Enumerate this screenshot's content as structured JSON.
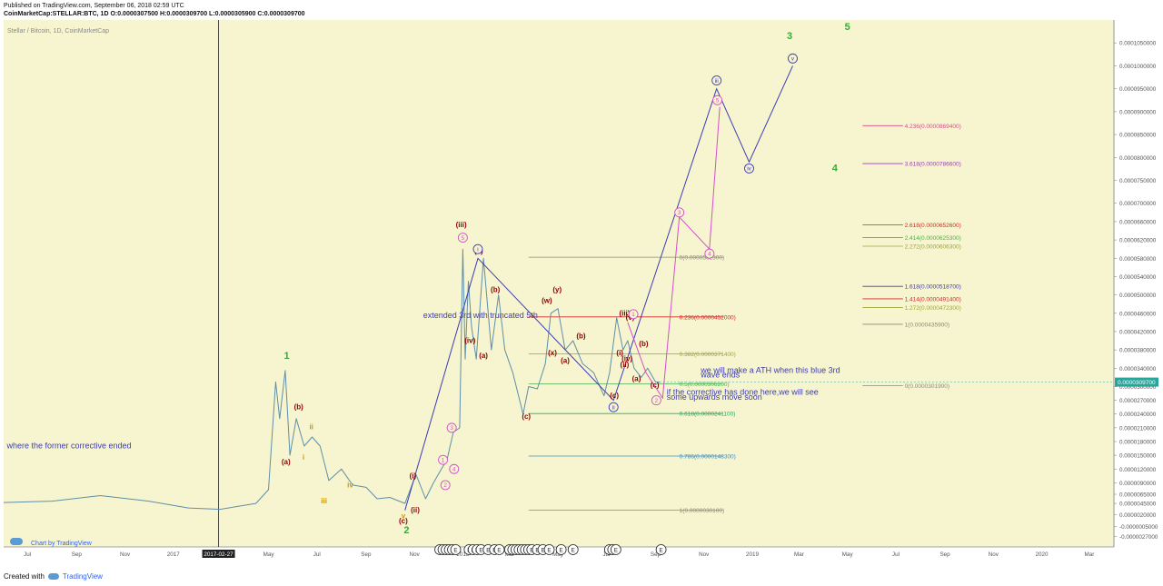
{
  "header": {
    "published": "Published on TradingView.com, September 06, 2018 02:59 UTC",
    "symbol_line": "CoinMarketCap:STELLAR:BTC, 1D  O:0.0000307500  H:0.0000309700  L:0.0000305900  C:0.0000309700"
  },
  "footer": {
    "created_with": "Created with",
    "brand": "TradingView"
  },
  "chart_data": {
    "type": "line",
    "title": "Stellar / Bitcoin, 1D, CoinMarketCap",
    "watermark": "Chart by TradingView",
    "ylim": [
      -5e-06,
      0.00011
    ],
    "y_ticks": [
      "0.0001100000",
      "0.0001050000",
      "0.0001000000",
      "0.0000950000",
      "0.0000900000",
      "0.0000850000",
      "0.0000800000",
      "0.0000750000",
      "0.0000700000",
      "0.0000660000",
      "0.0000620000",
      "0.0000580000",
      "0.0000540000",
      "0.0000500000",
      "0.0000460000",
      "0.0000420000",
      "0.0000380000",
      "0.0000340000",
      "0.0000300000",
      "0.0000270000",
      "0.0000240000",
      "0.0000210000",
      "0.0000180000",
      "0.0000150000",
      "0.0000120000",
      "0.0000090000",
      "0.0000065000",
      "0.0000045000",
      "0.0000020000",
      "-0.0000005000",
      "-0.0000027000",
      "-0.0000049000"
    ],
    "x_ticks": [
      "Jul",
      "Sep",
      "Nov",
      "2017",
      "2017-02-27",
      "May",
      "Jul",
      "Sep",
      "Nov",
      "2018",
      "Mar",
      "May",
      "Jul",
      "Sep",
      "Nov",
      "2019",
      "Mar",
      "May",
      "Jul",
      "Sep",
      "Nov",
      "2020",
      "Mar"
    ],
    "last_price": "0.0000309700",
    "colors": {
      "background": "#f7f5cf",
      "price": "#5f8ea8",
      "wave": "#3c3cb5",
      "pink": "#d44fc8",
      "green": "#3aa83a",
      "dark_red": "#8b0000",
      "orange": "#c8960a",
      "accent": "#5b9bd5"
    },
    "price_series": [
      {
        "x": "2016-06-01",
        "y": 4.7e-06
      },
      {
        "x": "2016-08-01",
        "y": 5e-06
      },
      {
        "x": "2016-10-01",
        "y": 6.2e-06
      },
      {
        "x": "2016-12-01",
        "y": 5e-06
      },
      {
        "x": "2017-01-20",
        "y": 3.5e-06
      },
      {
        "x": "2017-03-01",
        "y": 3.2e-06
      },
      {
        "x": "2017-04-15",
        "y": 4.5e-06
      },
      {
        "x": "2017-05-01",
        "y": 7.5e-06
      },
      {
        "x": "2017-05-10",
        "y": 3.1e-05
      },
      {
        "x": "2017-05-15",
        "y": 2.3e-05
      },
      {
        "x": "2017-05-22",
        "y": 3.35e-05
      },
      {
        "x": "2017-05-28",
        "y": 1.5e-05
      },
      {
        "x": "2017-06-05",
        "y": 2.3e-05
      },
      {
        "x": "2017-06-15",
        "y": 1.7e-05
      },
      {
        "x": "2017-06-25",
        "y": 1.9e-05
      },
      {
        "x": "2017-07-05",
        "y": 1.7e-05
      },
      {
        "x": "2017-07-16",
        "y": 9.5e-06
      },
      {
        "x": "2017-08-01",
        "y": 1.2e-05
      },
      {
        "x": "2017-08-15",
        "y": 8.5e-06
      },
      {
        "x": "2017-09-01",
        "y": 8e-06
      },
      {
        "x": "2017-09-15",
        "y": 5.5e-06
      },
      {
        "x": "2017-10-01",
        "y": 5.8e-06
      },
      {
        "x": "2017-10-20",
        "y": 4.5e-06
      },
      {
        "x": "2017-11-03",
        "y": 1.08e-05
      },
      {
        "x": "2017-11-15",
        "y": 5.5e-06
      },
      {
        "x": "2017-11-25",
        "y": 9e-06
      },
      {
        "x": "2017-12-05",
        "y": 1.2e-05
      },
      {
        "x": "2017-12-12",
        "y": 1.4e-05
      },
      {
        "x": "2017-12-20",
        "y": 2e-05
      },
      {
        "x": "2017-12-28",
        "y": 2.1e-05
      },
      {
        "x": "2018-01-01",
        "y": 6e-05
      },
      {
        "x": "2018-01-04",
        "y": 3.6e-05
      },
      {
        "x": "2018-01-08",
        "y": 5.3e-05
      },
      {
        "x": "2018-01-12",
        "y": 4.3e-05
      },
      {
        "x": "2018-01-18",
        "y": 3.6e-05
      },
      {
        "x": "2018-01-27",
        "y": 5.8e-05
      },
      {
        "x": "2018-02-06",
        "y": 3.8e-05
      },
      {
        "x": "2018-02-15",
        "y": 5e-05
      },
      {
        "x": "2018-02-23",
        "y": 3.8e-05
      },
      {
        "x": "2018-03-05",
        "y": 3.3e-05
      },
      {
        "x": "2018-03-18",
        "y": 2.4e-05
      },
      {
        "x": "2018-03-25",
        "y": 3e-05
      },
      {
        "x": "2018-04-05",
        "y": 2.95e-05
      },
      {
        "x": "2018-04-15",
        "y": 3.5e-05
      },
      {
        "x": "2018-04-22",
        "y": 4.6e-05
      },
      {
        "x": "2018-05-01",
        "y": 4.7e-05
      },
      {
        "x": "2018-05-10",
        "y": 3.8e-05
      },
      {
        "x": "2018-05-20",
        "y": 4e-05
      },
      {
        "x": "2018-06-01",
        "y": 3.5e-05
      },
      {
        "x": "2018-06-15",
        "y": 3.3e-05
      },
      {
        "x": "2018-06-28",
        "y": 2.8e-05
      },
      {
        "x": "2018-07-05",
        "y": 3.3e-05
      },
      {
        "x": "2018-07-14",
        "y": 4.5e-05
      },
      {
        "x": "2018-07-22",
        "y": 3.8e-05
      },
      {
        "x": "2018-07-28",
        "y": 4e-05
      },
      {
        "x": "2018-08-05",
        "y": 3.4e-05
      },
      {
        "x": "2018-08-14",
        "y": 3.2e-05
      },
      {
        "x": "2018-08-22",
        "y": 3.4e-05
      },
      {
        "x": "2018-09-01",
        "y": 3.1e-05
      },
      {
        "x": "2018-09-06",
        "y": 3.097e-05
      }
    ],
    "wave_path": [
      {
        "x": "2017-10-20",
        "y": 3e-06
      },
      {
        "x": "2018-01-20",
        "y": 5.8e-05
      },
      {
        "x": "2018-07-10",
        "y": 2.7e-05
      },
      {
        "x": "2018-11-17",
        "y": 9.5e-05
      },
      {
        "x": "2018-12-28",
        "y": 7.9e-05
      },
      {
        "x": "2019-02-21",
        "y": 0.0001
      }
    ],
    "pink_path": [
      {
        "x": "2018-07-28",
        "y": 4.4e-05
      },
      {
        "x": "2018-08-20",
        "y": 3.3e-05
      },
      {
        "x": "2018-09-10",
        "y": 2.75e-05
      },
      {
        "x": "2018-10-01",
        "y": 6.7e-05
      },
      {
        "x": "2018-11-08",
        "y": 6e-05
      },
      {
        "x": "2018-11-21",
        "y": 9.1e-05
      }
    ],
    "fib_retracement": [
      {
        "label": "1(0.0000030100)",
        "y": 3.01e-06,
        "color": "#8a8a78"
      },
      {
        "label": "0.786(0.0000148300)",
        "y": 1.483e-05,
        "color": "#3d8fbf"
      },
      {
        "label": "0.618(0.0000241100)",
        "y": 2.411e-05,
        "color": "#2ca865"
      },
      {
        "label": "0.5(0.0000306200)",
        "y": 3.062e-05,
        "color": "#4caf50"
      },
      {
        "label": "0.382(0.0000371400)",
        "y": 3.714e-05,
        "color": "#9aa53a"
      },
      {
        "label": "0.236(0.0000452000)",
        "y": 4.52e-05,
        "color": "#d62828"
      },
      {
        "label": "0(0.0000582300)",
        "y": 5.823e-05,
        "color": "#8a8a78"
      }
    ],
    "fib_extension": [
      {
        "label": "4.236(0.0000869400)",
        "y": 8.694e-05,
        "color": "#d94a8c"
      },
      {
        "label": "3.618(0.0000786600)",
        "y": 7.866e-05,
        "color": "#9c3ab5"
      },
      {
        "label": "2.618(0.0000652600)",
        "y": 6.526e-05,
        "color": "#d62828"
      },
      {
        "label": "2.414(0.0000625300)",
        "y": 6.253e-05,
        "color": "#4caf50"
      },
      {
        "label": "2.272(0.0000606300)",
        "y": 6.063e-05,
        "color": "#9aa53a"
      },
      {
        "label": "1.618(0.0000518700)",
        "y": 5.187e-05,
        "color": "#3c3cb5"
      },
      {
        "label": "1.414(0.0000491400)",
        "y": 4.914e-05,
        "color": "#d62828"
      },
      {
        "label": "1.272(0.0000472300)",
        "y": 4.723e-05,
        "color": "#9aa53a"
      },
      {
        "label": "1(0.0000435900)",
        "y": 4.359e-05,
        "color": "#8a8a78"
      },
      {
        "label": "0(0.0000301900)",
        "y": 3.019e-05,
        "color": "#8a8a78"
      }
    ],
    "annotations": [
      {
        "text": "extended 3rd with truncated 5th",
        "x": "2017-11-12",
        "y": 4.5e-05,
        "color": "#3c3cb5",
        "size": 9
      },
      {
        "text": "where the former corrective ended",
        "x": "2016-06-05",
        "y": 1.65e-05,
        "color": "#3c3cb5",
        "size": 9
      },
      {
        "text": "we will make a ATH when this blue 3rd",
        "x": "2018-10-28",
        "y": 3.3e-05,
        "color": "#3c3cb5",
        "size": 9
      },
      {
        "text": "wave ends",
        "x": "2018-10-28",
        "y": 3.2e-05,
        "color": "#3c3cb5",
        "size": 9
      },
      {
        "text": "if the corrective has done here,we will see",
        "x": "2018-09-15",
        "y": 2.82e-05,
        "color": "#3c3cb5",
        "size": 9
      },
      {
        "text": "some upwards move soon",
        "x": "2018-09-15",
        "y": 2.71e-05,
        "color": "#3c3cb5",
        "size": 9
      }
    ],
    "wave_labels": [
      {
        "text": "1",
        "x": "2017-05-24",
        "y": 3.6e-05,
        "color": "#3aa83a",
        "size": 11
      },
      {
        "text": "2",
        "x": "2017-10-22",
        "y": -2e-06,
        "color": "#3aa83a",
        "size": 11
      },
      {
        "text": "3",
        "x": "2019-02-17",
        "y": 0.0001058,
        "color": "#3aa83a",
        "size": 11
      },
      {
        "text": "4",
        "x": "2019-04-15",
        "y": 7.7e-05,
        "color": "#3aa83a",
        "size": 11
      },
      {
        "text": "5",
        "x": "2019-05-01",
        "y": 0.0001078,
        "color": "#3aa83a",
        "size": 11
      },
      {
        "text": "(a)",
        "x": "2017-05-23",
        "y": 1.3e-05,
        "color": "#8b0000",
        "size": 8
      },
      {
        "text": "(b)",
        "x": "2017-06-08",
        "y": 2.5e-05,
        "color": "#8b0000",
        "size": 8
      },
      {
        "text": "i",
        "x": "2017-06-14",
        "y": 1.4e-05,
        "color": "#c8960a",
        "size": 8
      },
      {
        "text": "ii",
        "x": "2017-06-24",
        "y": 2.07e-05,
        "color": "#c8960a",
        "size": 8
      },
      {
        "text": "iii",
        "x": "2017-07-10",
        "y": 4.5e-06,
        "color": "#c8960a",
        "size": 8
      },
      {
        "text": "iv",
        "x": "2017-08-12",
        "y": 8e-06,
        "color": "#c8960a",
        "size": 8
      },
      {
        "text": "v",
        "x": "2017-10-18",
        "y": 1.2e-06,
        "color": "#c8960a",
        "size": 8
      },
      {
        "text": "(c)",
        "x": "2017-10-18",
        "y": 2e-07,
        "color": "#8b0000",
        "size": 8
      },
      {
        "text": "(i)",
        "x": "2017-10-30",
        "y": 1e-05,
        "color": "#8b0000",
        "size": 8
      },
      {
        "text": "(ii)",
        "x": "2017-11-02",
        "y": 2.5e-06,
        "color": "#8b0000",
        "size": 8
      },
      {
        "text": "(iii)",
        "x": "2017-12-30",
        "y": 6.48e-05,
        "color": "#8b0000",
        "size": 8
      },
      {
        "text": "(iv)",
        "x": "2018-01-10",
        "y": 3.95e-05,
        "color": "#8b0000",
        "size": 8
      },
      {
        "text": "(v)",
        "x": "2018-01-21",
        "y": 5.9e-05,
        "color": "#8b0000",
        "size": 8
      },
      {
        "text": "(a)",
        "x": "2018-01-27",
        "y": 3.62e-05,
        "color": "#8b0000",
        "size": 8
      },
      {
        "text": "(b)",
        "x": "2018-02-11",
        "y": 5.06e-05,
        "color": "#8b0000",
        "size": 8
      },
      {
        "text": "(c)",
        "x": "2018-03-22",
        "y": 2.3e-05,
        "color": "#8b0000",
        "size": 8
      },
      {
        "text": "(w)",
        "x": "2018-04-17",
        "y": 4.82e-05,
        "color": "#8b0000",
        "size": 8
      },
      {
        "text": "(x)",
        "x": "2018-04-24",
        "y": 3.68e-05,
        "color": "#8b0000",
        "size": 8
      },
      {
        "text": "(y)",
        "x": "2018-04-30",
        "y": 5.06e-05,
        "color": "#8b0000",
        "size": 8
      },
      {
        "text": "(a)",
        "x": "2018-05-10",
        "y": 3.52e-05,
        "color": "#8b0000",
        "size": 8
      },
      {
        "text": "(b)",
        "x": "2018-05-30",
        "y": 4.05e-05,
        "color": "#8b0000",
        "size": 8
      },
      {
        "text": "(c)",
        "x": "2018-07-11",
        "y": 2.75e-05,
        "color": "#8b0000",
        "size": 8
      },
      {
        "text": "(i)",
        "x": "2018-07-18",
        "y": 3.68e-05,
        "color": "#8b0000",
        "size": 8
      },
      {
        "text": "(ii)",
        "x": "2018-07-24",
        "y": 3.43e-05,
        "color": "#8b0000",
        "size": 8
      },
      {
        "text": "(iii)",
        "x": "2018-07-24",
        "y": 4.55e-05,
        "color": "#8b0000",
        "size": 8
      },
      {
        "text": "(iv)",
        "x": "2018-07-27",
        "y": 3.55e-05,
        "color": "#8b0000",
        "size": 8
      },
      {
        "text": "(v)",
        "x": "2018-07-31",
        "y": 4.46e-05,
        "color": "#8b0000",
        "size": 8
      },
      {
        "text": "(a)",
        "x": "2018-08-08",
        "y": 3.12e-05,
        "color": "#8b0000",
        "size": 8
      },
      {
        "text": "(b)",
        "x": "2018-08-17",
        "y": 3.88e-05,
        "color": "#8b0000",
        "size": 8
      },
      {
        "text": "(c)",
        "x": "2018-08-31",
        "y": 2.98e-05,
        "color": "#8b0000",
        "size": 8
      }
    ],
    "circle_labels": [
      {
        "text": "i",
        "x": "2018-01-20",
        "y": 6e-05,
        "color": "#3c3cb5"
      },
      {
        "text": "ii",
        "x": "2018-07-10",
        "y": 2.55e-05,
        "color": "#3c3cb5"
      },
      {
        "text": "iii",
        "x": "2018-11-17",
        "y": 9.68e-05,
        "color": "#3c3cb5"
      },
      {
        "text": "iv",
        "x": "2018-12-28",
        "y": 7.76e-05,
        "color": "#3c3cb5"
      },
      {
        "text": "v",
        "x": "2019-02-21",
        "y": 0.0001016,
        "color": "#3c3cb5"
      },
      {
        "text": "1",
        "x": "2017-12-07",
        "y": 1.4e-05,
        "color": "#d44fc8"
      },
      {
        "text": "2",
        "x": "2017-12-10",
        "y": 8.5e-06,
        "color": "#d44fc8"
      },
      {
        "text": "3",
        "x": "2017-12-18",
        "y": 2.1e-05,
        "color": "#d44fc8"
      },
      {
        "text": "4",
        "x": "2017-12-21",
        "y": 1.2e-05,
        "color": "#d44fc8"
      },
      {
        "text": "5",
        "x": "2018-01-01",
        "y": 6.25e-05,
        "color": "#d44fc8"
      },
      {
        "text": "1",
        "x": "2018-08-04",
        "y": 4.58e-05,
        "color": "#d44fc8"
      },
      {
        "text": "2",
        "x": "2018-09-02",
        "y": 2.7e-05,
        "color": "#d44fc8"
      },
      {
        "text": "3",
        "x": "2018-10-01",
        "y": 6.8e-05,
        "color": "#d44fc8"
      },
      {
        "text": "4",
        "x": "2018-11-08",
        "y": 5.9e-05,
        "color": "#d44fc8"
      },
      {
        "text": "5",
        "x": "2018-11-18",
        "y": 9.25e-05,
        "color": "#d44fc8"
      }
    ],
    "event_markers": [
      {
        "text": "E",
        "x": "2017-12-03"
      },
      {
        "text": "E",
        "x": "2017-12-07"
      },
      {
        "text": "E",
        "x": "2017-12-11"
      },
      {
        "text": "E",
        "x": "2017-12-15"
      },
      {
        "text": "E",
        "x": "2017-12-19"
      },
      {
        "text": "E",
        "x": "2017-12-23"
      },
      {
        "text": "E",
        "x": "2018-01-09"
      },
      {
        "text": "E",
        "x": "2018-01-14"
      },
      {
        "text": "E",
        "x": "2018-01-19"
      },
      {
        "text": "E",
        "x": "2018-01-24"
      },
      {
        "text": "E",
        "x": "2018-02-02"
      },
      {
        "text": "E",
        "x": "2018-02-10"
      },
      {
        "text": "E",
        "x": "2018-02-16"
      },
      {
        "text": "E",
        "x": "2018-03-01"
      },
      {
        "text": "E",
        "x": "2018-03-05"
      },
      {
        "text": "E",
        "x": "2018-03-09"
      },
      {
        "text": "E",
        "x": "2018-03-13"
      },
      {
        "text": "E",
        "x": "2018-03-17"
      },
      {
        "text": "E",
        "x": "2018-03-21"
      },
      {
        "text": "E",
        "x": "2018-03-25"
      },
      {
        "text": "E",
        "x": "2018-03-29"
      },
      {
        "text": "E",
        "x": "2018-04-05"
      },
      {
        "text": "E",
        "x": "2018-04-12"
      },
      {
        "text": "E",
        "x": "2018-04-20"
      },
      {
        "text": "E",
        "x": "2018-05-05"
      },
      {
        "text": "E",
        "x": "2018-05-20"
      },
      {
        "text": "E",
        "x": "2018-07-05"
      },
      {
        "text": "E",
        "x": "2018-07-09"
      },
      {
        "text": "E",
        "x": "2018-07-13"
      },
      {
        "text": "E",
        "x": "2018-09-08"
      }
    ]
  }
}
